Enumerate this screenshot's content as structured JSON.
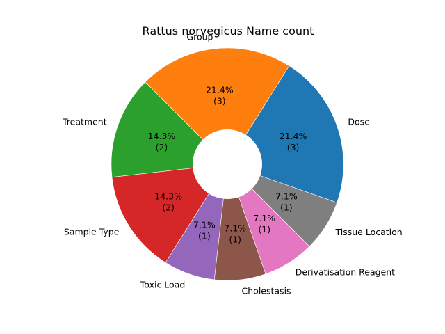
{
  "chart_data": {
    "type": "pie",
    "title": "Rattus norvegicus Name count",
    "slices": [
      {
        "label": "Dose",
        "value": 3,
        "percent": "21.4%",
        "count_label": "(3)",
        "color": "#1f77b4"
      },
      {
        "label": "Group",
        "value": 3,
        "percent": "21.4%",
        "count_label": "(3)",
        "color": "#ff7f0e"
      },
      {
        "label": "Treatment",
        "value": 2,
        "percent": "14.3%",
        "count_label": "(2)",
        "color": "#2ca02c"
      },
      {
        "label": "Sample Type",
        "value": 2,
        "percent": "14.3%",
        "count_label": "(2)",
        "color": "#d62728"
      },
      {
        "label": "Toxic Load",
        "value": 1,
        "percent": "7.1%",
        "count_label": "(1)",
        "color": "#9467bd"
      },
      {
        "label": "Cholestasis",
        "value": 1,
        "percent": "7.1%",
        "count_label": "(1)",
        "color": "#8c564b"
      },
      {
        "label": "Derivatisation Reagent",
        "value": 1,
        "percent": "7.1%",
        "count_label": "(1)",
        "color": "#e377c2"
      },
      {
        "label": "Tissue Location",
        "value": 1,
        "percent": "7.1%",
        "count_label": "(1)",
        "color": "#7f7f7f"
      }
    ],
    "start_angle_deg": -19.3,
    "direction": "counterclockwise",
    "donut": true
  }
}
